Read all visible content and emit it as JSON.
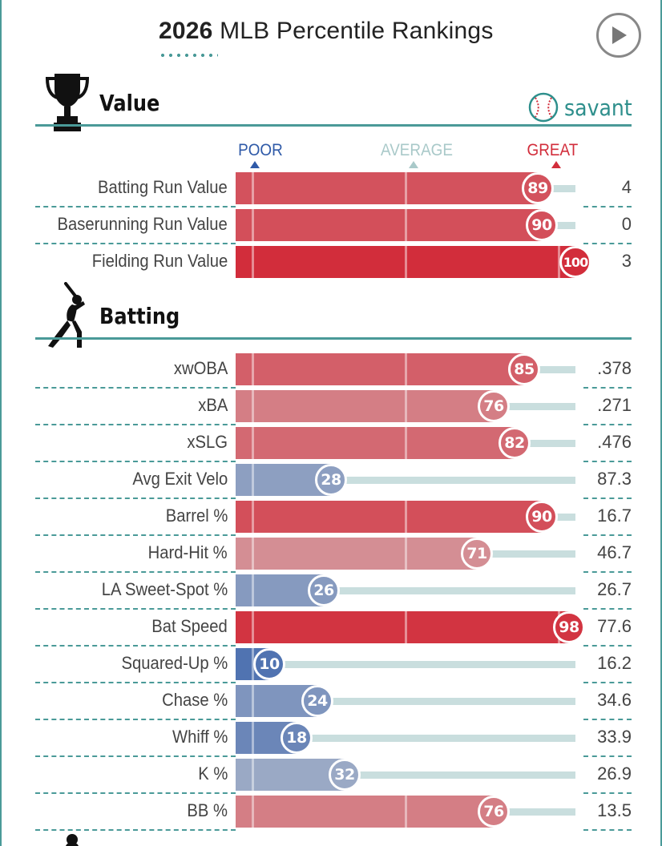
{
  "header": {
    "title_year": "2026",
    "title_rest": "MLB Percentile Rankings",
    "play_button": "play-icon"
  },
  "brand": {
    "name": "savant",
    "color": "#2e8f8c"
  },
  "scale": {
    "poor": "POOR",
    "average": "AVERAGE",
    "great": "GREAT",
    "poor_color": "#2f5aa8",
    "average_color": "#a9c9c9",
    "great_color": "#d22d3b"
  },
  "sections": [
    {
      "id": "value",
      "title": "Value",
      "icon": "trophy-icon"
    },
    {
      "id": "batting",
      "title": "Batting",
      "icon": "batter-icon"
    }
  ],
  "chart_data": {
    "type": "bar",
    "orientation": "horizontal",
    "title": "2026 MLB Percentile Rankings",
    "xlim": [
      0,
      100
    ],
    "groups": [
      {
        "name": "Value",
        "metrics": [
          {
            "label": "Batting Run Value",
            "percentile": 89,
            "value": "4"
          },
          {
            "label": "Baserunning Run Value",
            "percentile": 90,
            "value": "0"
          },
          {
            "label": "Fielding Run Value",
            "percentile": 100,
            "value": "3"
          }
        ]
      },
      {
        "name": "Batting",
        "metrics": [
          {
            "label": "xwOBA",
            "percentile": 85,
            "value": ".378"
          },
          {
            "label": "xBA",
            "percentile": 76,
            "value": ".271"
          },
          {
            "label": "xSLG",
            "percentile": 82,
            "value": ".476"
          },
          {
            "label": "Avg Exit Velo",
            "percentile": 28,
            "value": "87.3"
          },
          {
            "label": "Barrel %",
            "percentile": 90,
            "value": "16.7"
          },
          {
            "label": "Hard-Hit %",
            "percentile": 71,
            "value": "46.7"
          },
          {
            "label": "LA Sweet-Spot %",
            "percentile": 26,
            "value": "26.7"
          },
          {
            "label": "Bat Speed",
            "percentile": 98,
            "value": "77.6"
          },
          {
            "label": "Squared-Up %",
            "percentile": 10,
            "value": "16.2"
          },
          {
            "label": "Chase %",
            "percentile": 24,
            "value": "34.6"
          },
          {
            "label": "Whiff %",
            "percentile": 18,
            "value": "33.9"
          },
          {
            "label": "K %",
            "percentile": 32,
            "value": "26.9"
          },
          {
            "label": "BB %",
            "percentile": 76,
            "value": "13.5"
          }
        ]
      }
    ]
  }
}
